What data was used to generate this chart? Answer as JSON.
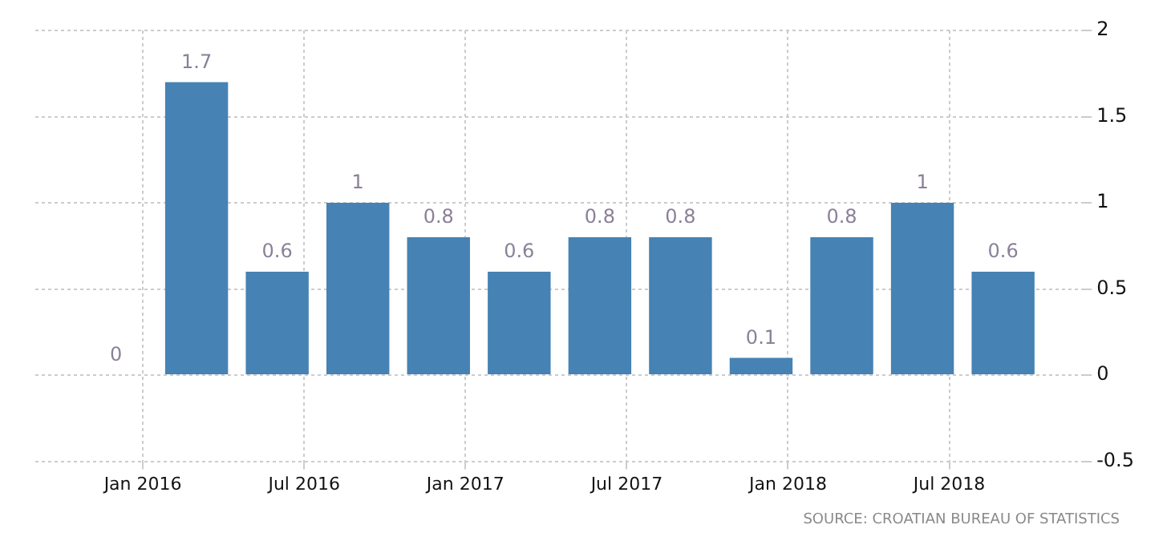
{
  "chart_data": {
    "type": "bar",
    "x": [
      "2015-12",
      "2016-03",
      "2016-06",
      "2016-09",
      "2016-12",
      "2017-03",
      "2017-06",
      "2017-09",
      "2017-12",
      "2018-03",
      "2018-06",
      "2018-09"
    ],
    "values": [
      0,
      1.7,
      0.6,
      1,
      0.8,
      0.6,
      0.8,
      0.8,
      0.1,
      0.8,
      1,
      0.6
    ],
    "color": "#4682b4",
    "data_labels": true,
    "xlim": [
      "2015-09",
      "2018-12"
    ],
    "xticks": [
      {
        "value": "2016-01",
        "label": "Jan 2016"
      },
      {
        "value": "2016-07",
        "label": "Jul 2016"
      },
      {
        "value": "2017-01",
        "label": "Jan 2017"
      },
      {
        "value": "2017-07",
        "label": "Jul 2017"
      },
      {
        "value": "2018-01",
        "label": "Jan 2018"
      },
      {
        "value": "2018-07",
        "label": "Jul 2018"
      }
    ],
    "ylim": [
      -0.5,
      2
    ],
    "yticks": [
      -0.5,
      0,
      0.5,
      1,
      1.5,
      2
    ],
    "grid": true,
    "legend": false,
    "annotations": [
      "SOURCE: CROATIAN BUREAU OF STATISTICS"
    ]
  }
}
